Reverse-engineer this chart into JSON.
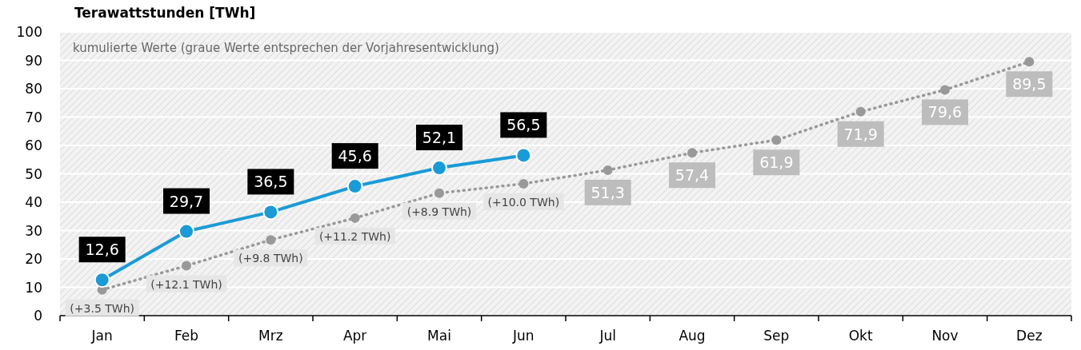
{
  "chart_data": {
    "type": "line",
    "ylabel": "Terawattstunden [TWh]",
    "categories": [
      "Jan",
      "Feb",
      "Mrz",
      "Apr",
      "Mai",
      "Jun",
      "Jul",
      "Aug",
      "Sep",
      "Okt",
      "Nov",
      "Dez"
    ],
    "series": [
      {
        "color": "#999999",
        "line_style": "dotted",
        "marker": "circle",
        "values": [
          9.1,
          17.6,
          26.7,
          34.4,
          43.2,
          46.5,
          51.3,
          57.4,
          61.9,
          71.9,
          79.6,
          89.5
        ],
        "value_labels": [
          null,
          null,
          null,
          null,
          null,
          null,
          "51,3",
          "57,4",
          "61,9",
          "71,9",
          "79,6",
          "89,5"
        ]
      },
      {
        "color": "#1a9bd7",
        "line_style": "solid",
        "marker": "circle",
        "values": [
          12.6,
          29.7,
          36.5,
          45.6,
          52.1,
          56.5,
          null,
          null,
          null,
          null,
          null,
          null
        ],
        "value_labels": [
          "12,6",
          "29,7",
          "36,5",
          "45,6",
          "52,1",
          "56,5",
          null,
          null,
          null,
          null,
          null,
          null
        ]
      }
    ],
    "ylim": [
      0,
      100
    ],
    "yticks": [
      0,
      10,
      20,
      30,
      40,
      50,
      60,
      70,
      80,
      90,
      100
    ],
    "grid": "y",
    "annotations": [
      "kumulierte Werte (graue Werte entsprechen der Vorjahresentwicklung)",
      {
        "text": "(+3.5 TWh)",
        "x": "Jan",
        "y": 9.1
      },
      {
        "text": "(+12.1 TWh)",
        "x": "Feb",
        "y": 17.6
      },
      {
        "text": "(+9.8 TWh)",
        "x": "Mrz",
        "y": 26.7
      },
      {
        "text": "(+11.2 TWh)",
        "x": "Apr",
        "y": 34.4
      },
      {
        "text": "(+8.9 TWh)",
        "x": "Mai",
        "y": 43.2
      },
      {
        "text": "(+10.0 TWh)",
        "x": "Jun",
        "y": 46.5
      }
    ]
  }
}
